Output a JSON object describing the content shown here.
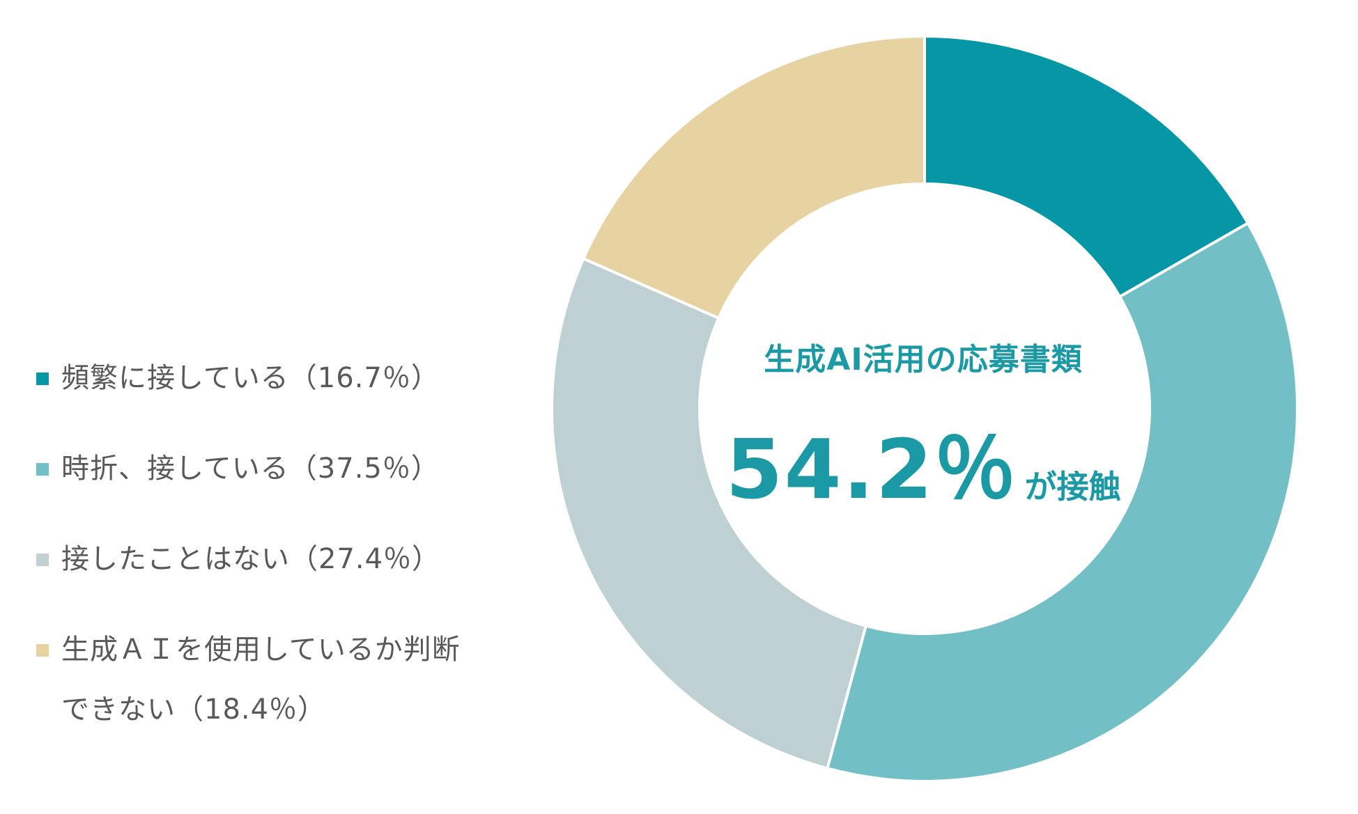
{
  "colors": {
    "frequent": "#0597a5",
    "sometimes": "#73bfc6",
    "never": "#bed0d2",
    "unknown": "#e7d3a1",
    "accent_text": "#1b9aa5",
    "legend_text": "#595959"
  },
  "legend": {
    "items": [
      {
        "label": "頻繁に接している（16.7％）",
        "color": "#0597a5"
      },
      {
        "label": "時折、接している（37.5％）",
        "color": "#73bfc6"
      },
      {
        "label": "接したことはない（27.4％）",
        "color": "#bed0d2"
      },
      {
        "label": "生成ＡＩを使用しているか判断\nできない（18.4％）",
        "color": "#e7d3a1"
      }
    ]
  },
  "center": {
    "title": "生成AI活用の応募書類",
    "value": "54.2％",
    "suffix": "が接触"
  },
  "chart_data": {
    "type": "pie",
    "variant": "donut",
    "categories": [
      "頻繁に接している",
      "時折、接している",
      "接したことはない",
      "生成ＡＩを使用しているか判断できない"
    ],
    "values": [
      16.7,
      37.5,
      27.4,
      18.4
    ],
    "colors": [
      "#0597a5",
      "#73bfc6",
      "#bed0d2",
      "#e7d3a1"
    ],
    "start": "top",
    "direction": "clockwise",
    "legend_position": "left"
  }
}
